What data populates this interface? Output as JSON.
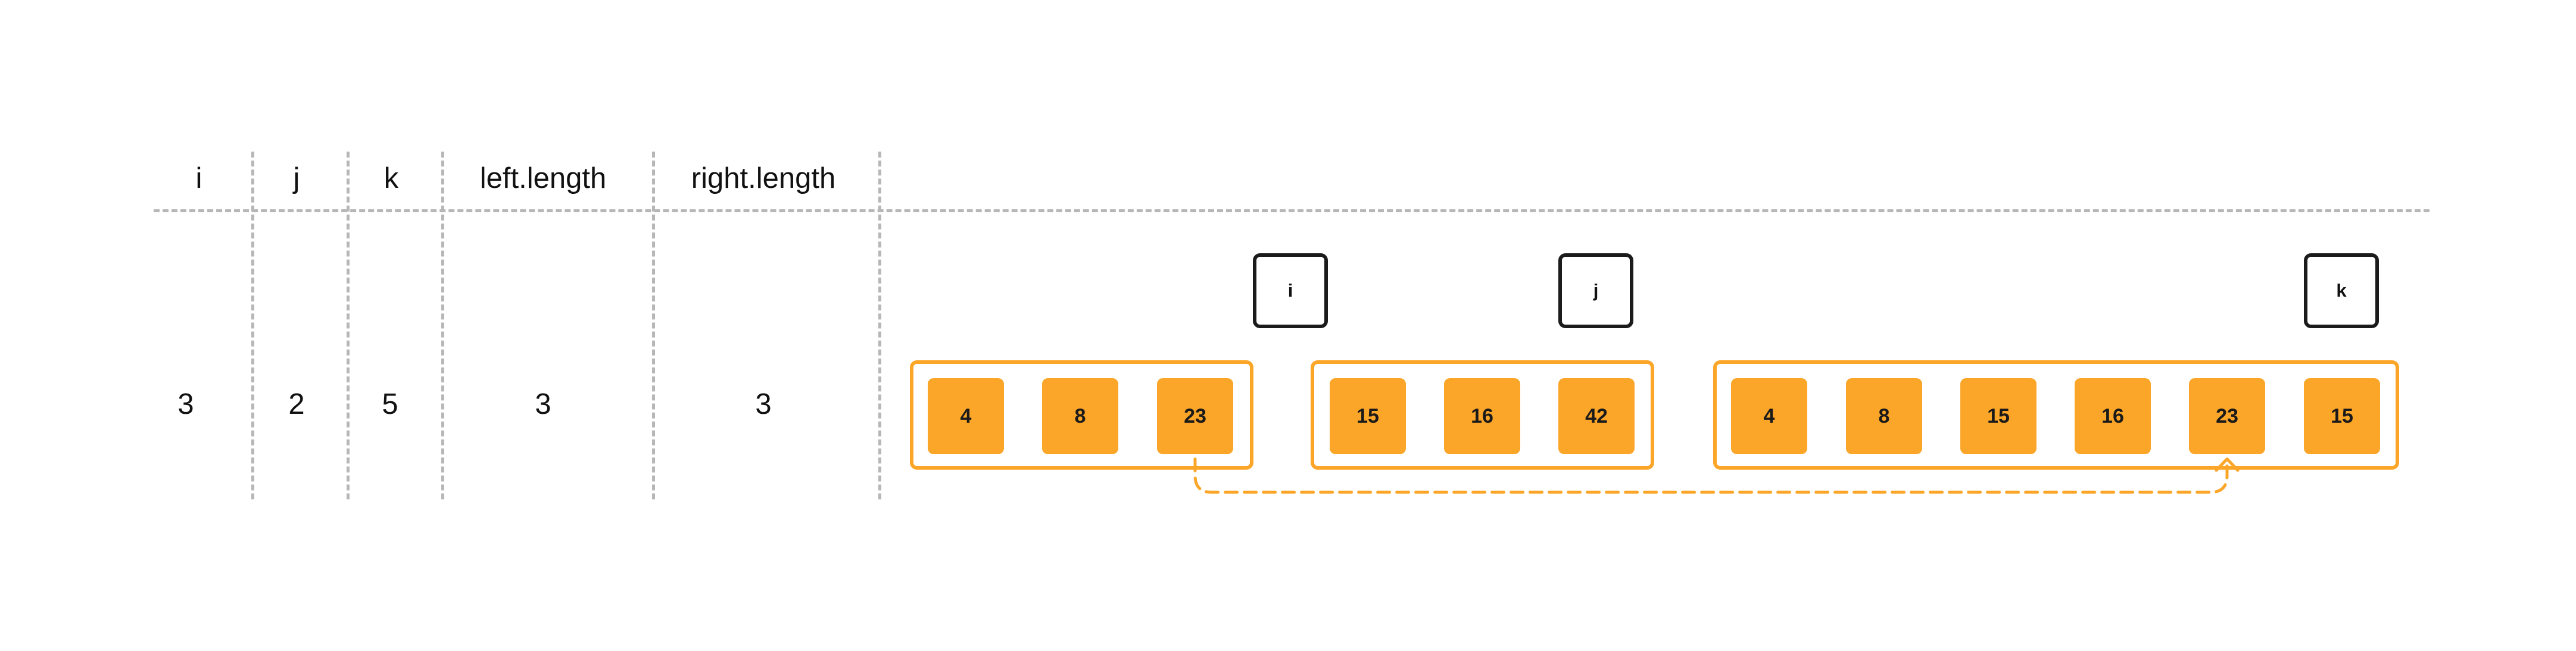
{
  "table": {
    "headers": [
      "i",
      "j",
      "k",
      "left.length",
      "right.length"
    ],
    "values": [
      "3",
      "2",
      "5",
      "3",
      "3"
    ]
  },
  "pointers": {
    "i": "i",
    "j": "j",
    "k": "k"
  },
  "arrays": {
    "left": [
      "4",
      "8",
      "23"
    ],
    "right": [
      "15",
      "16",
      "42"
    ],
    "merged": [
      "4",
      "8",
      "15",
      "16",
      "23",
      "15"
    ]
  },
  "colors": {
    "accent": "#fba628",
    "divider": "#b7b7b7",
    "pointer_border": "#1b1b1b"
  }
}
